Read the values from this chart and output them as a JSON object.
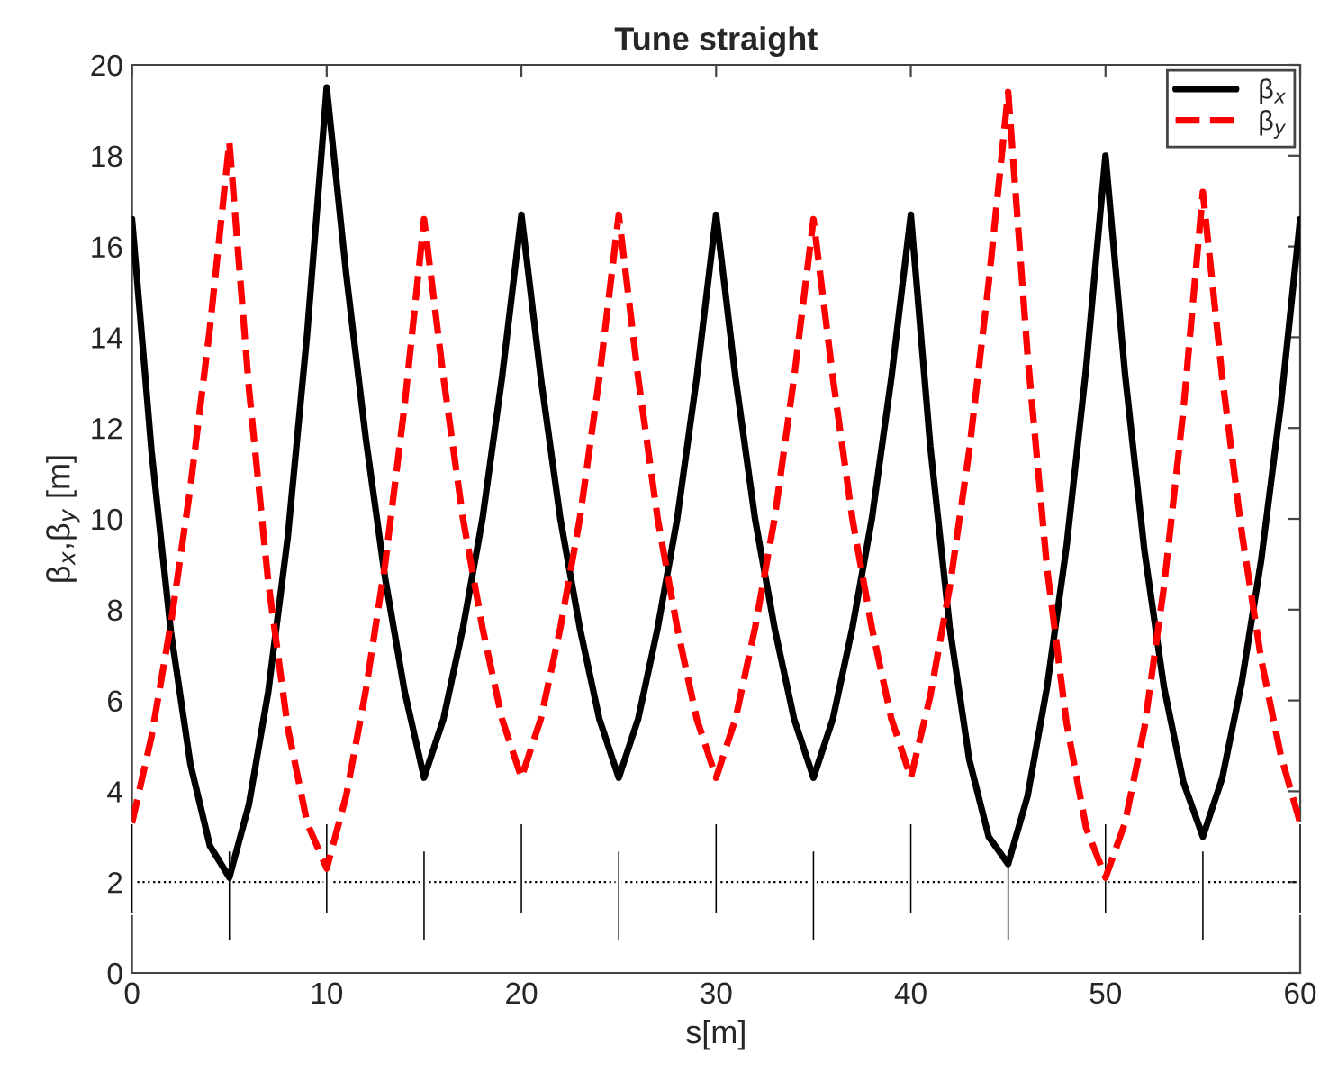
{
  "chart_data": {
    "type": "line",
    "title": "Tune straight",
    "xlabel": "s[m]",
    "ylabel": "β$_{x}$,β$_{y}$ [m]",
    "x": [
      0,
      1,
      2,
      3,
      4,
      5,
      6,
      7,
      8,
      9,
      10,
      11,
      12,
      13,
      14,
      15,
      16,
      17,
      18,
      19,
      20,
      21,
      22,
      23,
      24,
      25,
      26,
      27,
      28,
      29,
      30,
      31,
      32,
      33,
      34,
      35,
      36,
      37,
      38,
      39,
      40,
      41,
      42,
      43,
      44,
      45,
      46,
      47,
      48,
      49,
      50,
      51,
      52,
      53,
      54,
      55,
      56,
      57,
      58,
      59,
      60
    ],
    "series": [
      {
        "name": "β$_{x}$",
        "color": "#000000",
        "line_style": "solid",
        "values": [
          16.6,
          11.5,
          7.5,
          4.6,
          2.8,
          2.1,
          3.7,
          6.2,
          9.6,
          14.1,
          19.5,
          15.4,
          11.8,
          8.7,
          6.2,
          4.3,
          5.6,
          7.6,
          10.0,
          13.1,
          16.7,
          13.1,
          10.0,
          7.6,
          5.6,
          4.3,
          5.6,
          7.6,
          10.0,
          13.1,
          16.7,
          13.1,
          10.0,
          7.6,
          5.6,
          4.3,
          5.6,
          7.6,
          10.0,
          13.1,
          16.7,
          11.6,
          7.6,
          4.7,
          3.0,
          2.4,
          3.9,
          6.3,
          9.4,
          13.3,
          18.0,
          13.2,
          9.3,
          6.3,
          4.2,
          3.0,
          4.3,
          6.4,
          9.1,
          12.5,
          16.6
        ]
      },
      {
        "name": "β$_{y}$",
        "color": "#ff0000",
        "line_style": "dashed",
        "values": [
          3.3,
          5.2,
          7.7,
          10.7,
          14.2,
          18.3,
          12.9,
          8.6,
          5.4,
          3.3,
          2.3,
          3.9,
          6.2,
          9.0,
          12.5,
          16.6,
          13.1,
          10.0,
          7.6,
          5.6,
          4.3,
          5.6,
          7.6,
          10.0,
          13.1,
          16.7,
          13.1,
          10.0,
          7.6,
          5.6,
          4.3,
          5.6,
          7.6,
          10.0,
          13.1,
          16.6,
          13.1,
          10.0,
          7.6,
          5.6,
          4.3,
          6.1,
          8.5,
          11.5,
          15.2,
          19.4,
          13.6,
          8.9,
          5.5,
          3.2,
          2.1,
          3.3,
          5.4,
          8.5,
          12.4,
          17.2,
          13.1,
          9.7,
          6.9,
          4.8,
          3.3
        ]
      },
      {
        "type": "bar",
        "color": "#000000",
        "x": [
          0,
          5,
          10,
          15,
          20,
          25,
          30,
          35,
          40,
          45,
          50,
          55,
          60
        ],
        "base": [
          1.3,
          0.7,
          1.3,
          0.7,
          1.3,
          0.7,
          1.3,
          0.7,
          1.3,
          0.7,
          1.3,
          0.7,
          1.3
        ],
        "values": [
          2.0,
          2.0,
          2.0,
          2.0,
          2.0,
          2.0,
          2.0,
          2.0,
          2.0,
          2.0,
          2.0,
          2.0,
          2.0
        ]
      }
    ],
    "ref_lines": [
      {
        "axis": "y",
        "value": 2,
        "color": "#000000",
        "line_style": "dotted"
      }
    ],
    "xlim": [
      0,
      60
    ],
    "xticks": [
      0,
      10,
      20,
      30,
      40,
      50,
      60
    ],
    "ylim": [
      0,
      20
    ],
    "yticks": [
      0,
      2,
      4,
      6,
      8,
      10,
      12,
      14,
      16,
      18,
      20
    ],
    "grid": false,
    "legend": "top right"
  }
}
